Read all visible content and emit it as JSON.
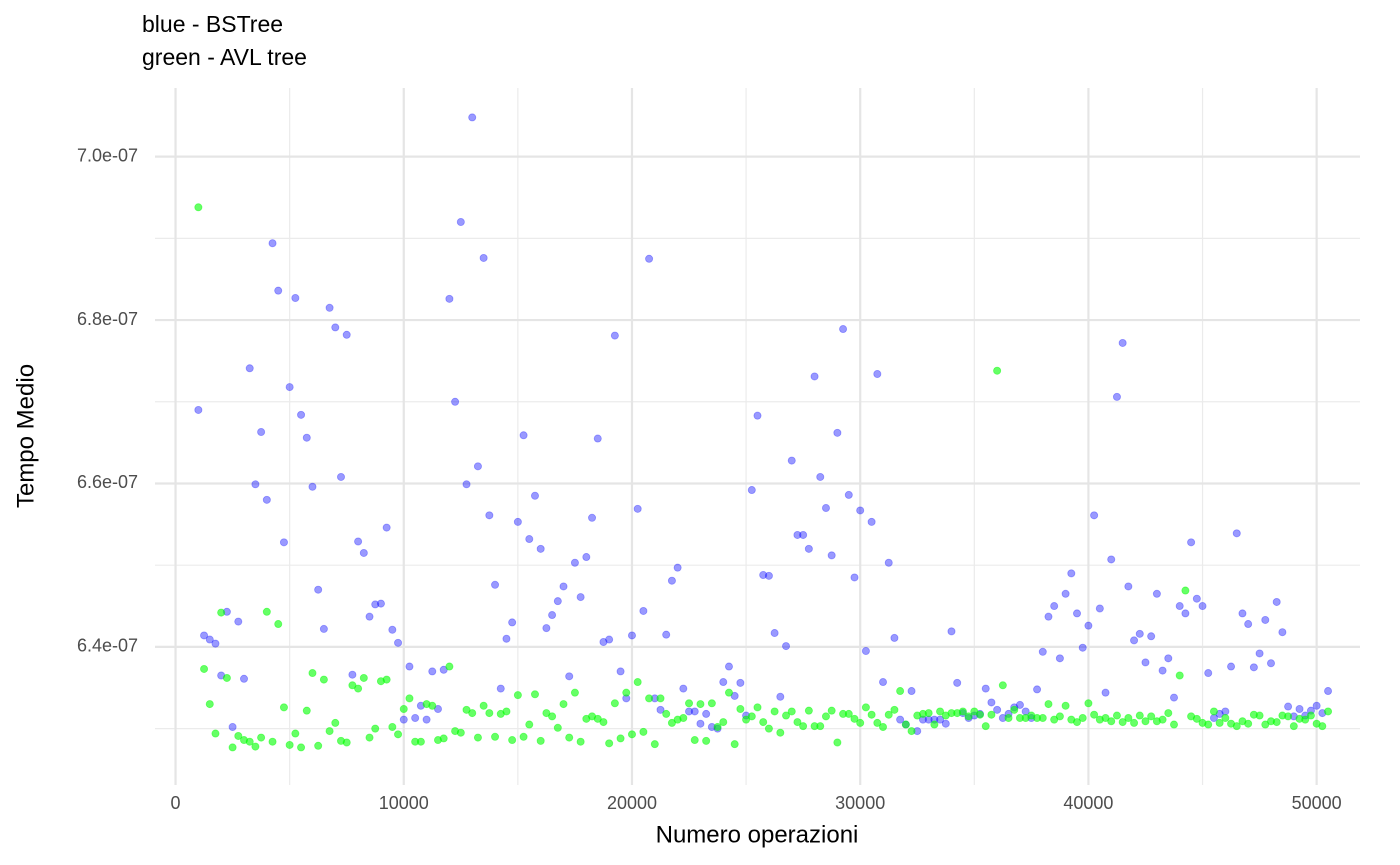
{
  "chart_data": {
    "type": "scatter",
    "title": "blue - BSTree",
    "subtitle": "green - AVL tree",
    "x_label": "Numero operazioni",
    "y_label": "Tempo Medio",
    "xlim": [
      -900,
      51900
    ],
    "ylim": [
      6.231e-07,
      7.084e-07
    ],
    "xticks": [
      0,
      10000,
      20000,
      30000,
      40000,
      50000
    ],
    "x_minor_ticks": [
      5000,
      15000,
      25000,
      35000,
      45000
    ],
    "yticks": [
      {
        "value": 6.4e-07,
        "label": "6.4e-07"
      },
      {
        "value": 6.6e-07,
        "label": "6.6e-07"
      },
      {
        "value": 6.8e-07,
        "label": "6.8e-07"
      },
      {
        "value": 7e-07,
        "label": "7.0e-07"
      }
    ],
    "y_minor_ticks": [
      6.3e-07,
      6.5e-07,
      6.7e-07,
      6.9e-07
    ],
    "grid": true,
    "x": [
      1000,
      1250,
      1500,
      1750,
      2000,
      2250,
      2500,
      2750,
      3000,
      3250,
      3500,
      3750,
      4000,
      4250,
      4500,
      4750,
      5000,
      5250,
      5500,
      5750,
      6000,
      6250,
      6500,
      6750,
      7000,
      7250,
      7500,
      7750,
      8000,
      8250,
      8500,
      8750,
      9000,
      9250,
      9500,
      9750,
      10000,
      10250,
      10500,
      10750,
      11000,
      11250,
      11500,
      11750,
      12000,
      12250,
      12500,
      12750,
      13000,
      13250,
      13500,
      13750,
      14000,
      14250,
      14500,
      14750,
      15000,
      15250,
      15500,
      15750,
      16000,
      16250,
      16500,
      16750,
      17000,
      17250,
      17500,
      17750,
      18000,
      18250,
      18500,
      18750,
      19000,
      19250,
      19500,
      19750,
      20000,
      20250,
      20500,
      20750,
      21000,
      21250,
      21500,
      21750,
      22000,
      22250,
      22500,
      22750,
      23000,
      23250,
      23500,
      23750,
      24000,
      24250,
      24500,
      24750,
      25000,
      25250,
      25500,
      25750,
      26000,
      26250,
      26500,
      26750,
      27000,
      27250,
      27500,
      27750,
      28000,
      28250,
      28500,
      28750,
      29000,
      29250,
      29500,
      29750,
      30000,
      30250,
      30500,
      30750,
      31000,
      31250,
      31500,
      31750,
      32000,
      32250,
      32500,
      32750,
      33000,
      33250,
      33500,
      33750,
      34000,
      34250,
      34500,
      34750,
      35000,
      35250,
      35500,
      35750,
      36000,
      36250,
      36500,
      36750,
      37000,
      37250,
      37500,
      37750,
      38000,
      38250,
      38500,
      38750,
      39000,
      39250,
      39500,
      39750,
      40000,
      40250,
      40500,
      40750,
      41000,
      41250,
      41500,
      41750,
      42000,
      42250,
      42500,
      42750,
      43000,
      43250,
      43500,
      43750,
      44000,
      44250,
      44500,
      44750,
      45000,
      45250,
      45500,
      45750,
      46000,
      46250,
      46500,
      46750,
      47000,
      47250,
      47500,
      47750,
      48000,
      48250,
      48500,
      48750,
      49000,
      49250,
      49500,
      49750,
      50000,
      50250,
      50500
    ],
    "series": [
      {
        "color": "#0000ff",
        "opacity": 0.4,
        "values": [
          6.69e-07,
          6.414e-07,
          6.409e-07,
          6.404e-07,
          6.365e-07,
          6.443e-07,
          6.302e-07,
          6.431e-07,
          6.361e-07,
          6.741e-07,
          6.599e-07,
          6.663e-07,
          6.58e-07,
          6.894e-07,
          6.836e-07,
          6.528e-07,
          6.718e-07,
          6.827e-07,
          6.684e-07,
          6.656e-07,
          6.596e-07,
          6.47e-07,
          6.422e-07,
          6.815e-07,
          6.791e-07,
          6.608e-07,
          6.782e-07,
          6.366e-07,
          6.529e-07,
          6.515e-07,
          6.437e-07,
          6.452e-07,
          6.453e-07,
          6.546e-07,
          6.421e-07,
          6.405e-07,
          6.311e-07,
          6.376e-07,
          6.313e-07,
          6.328e-07,
          6.311e-07,
          6.37e-07,
          6.324e-07,
          6.372e-07,
          6.826e-07,
          6.7e-07,
          6.92e-07,
          6.599e-07,
          7.048e-07,
          6.621e-07,
          6.876e-07,
          6.561e-07,
          6.476e-07,
          6.349e-07,
          6.41e-07,
          6.43e-07,
          6.553e-07,
          6.659e-07,
          6.532e-07,
          6.585e-07,
          6.52e-07,
          6.423e-07,
          6.439e-07,
          6.456e-07,
          6.474e-07,
          6.364e-07,
          6.503e-07,
          6.461e-07,
          6.51e-07,
          6.558e-07,
          6.655e-07,
          6.406e-07,
          6.409e-07,
          6.781e-07,
          6.37e-07,
          6.337e-07,
          6.414e-07,
          6.569e-07,
          6.444e-07,
          6.875e-07,
          6.337e-07,
          6.323e-07,
          6.415e-07,
          6.481e-07,
          6.497e-07,
          6.349e-07,
          6.321e-07,
          6.321e-07,
          6.306e-07,
          6.318e-07,
          6.302e-07,
          6.3e-07,
          6.357e-07,
          6.376e-07,
          6.34e-07,
          6.356e-07,
          6.316e-07,
          6.592e-07,
          6.683e-07,
          6.488e-07,
          6.487e-07,
          6.417e-07,
          6.339e-07,
          6.401e-07,
          6.628e-07,
          6.537e-07,
          6.537e-07,
          6.52e-07,
          6.731e-07,
          6.608e-07,
          6.57e-07,
          6.512e-07,
          6.662e-07,
          6.789e-07,
          6.586e-07,
          6.485e-07,
          6.567e-07,
          6.395e-07,
          6.553e-07,
          6.734e-07,
          6.357e-07,
          6.503e-07,
          6.411e-07,
          6.311e-07,
          6.305e-07,
          6.346e-07,
          6.297e-07,
          6.311e-07,
          6.311e-07,
          6.311e-07,
          6.311e-07,
          6.306e-07,
          6.419e-07,
          6.356e-07,
          6.319e-07,
          6.313e-07,
          6.316e-07,
          6.318e-07,
          6.349e-07,
          6.332e-07,
          6.323e-07,
          6.313e-07,
          6.318e-07,
          6.326e-07,
          6.329e-07,
          6.321e-07,
          6.313e-07,
          6.348e-07,
          6.394e-07,
          6.437e-07,
          6.45e-07,
          6.386e-07,
          6.465e-07,
          6.49e-07,
          6.441e-07,
          6.399e-07,
          6.426e-07,
          6.561e-07,
          6.447e-07,
          6.344e-07,
          6.507e-07,
          6.706e-07,
          6.772e-07,
          6.474e-07,
          6.408e-07,
          6.416e-07,
          6.381e-07,
          6.413e-07,
          6.465e-07,
          6.371e-07,
          6.386e-07,
          6.338e-07,
          6.45e-07,
          6.441e-07,
          6.528e-07,
          6.459e-07,
          6.45e-07,
          6.368e-07,
          6.313e-07,
          6.318e-07,
          6.321e-07,
          6.376e-07,
          6.539e-07,
          6.441e-07,
          6.428e-07,
          6.375e-07,
          6.392e-07,
          6.433e-07,
          6.38e-07,
          6.455e-07,
          6.418e-07,
          6.327e-07,
          6.315e-07,
          6.324e-07,
          6.316e-07,
          6.322e-07,
          6.328e-07,
          6.319e-07,
          6.346e-07
        ]
      },
      {
        "color": "#00ff00",
        "opacity": 0.6,
        "values": [
          6.938e-07,
          6.373e-07,
          6.33e-07,
          6.294e-07,
          6.442e-07,
          6.362e-07,
          6.277e-07,
          6.291e-07,
          6.286e-07,
          6.284e-07,
          6.278e-07,
          6.289e-07,
          6.443e-07,
          6.284e-07,
          6.428e-07,
          6.326e-07,
          6.28e-07,
          6.294e-07,
          6.277e-07,
          6.322e-07,
          6.368e-07,
          6.279e-07,
          6.36e-07,
          6.297e-07,
          6.307e-07,
          6.285e-07,
          6.283e-07,
          6.353e-07,
          6.349e-07,
          6.362e-07,
          6.289e-07,
          6.3e-07,
          6.358e-07,
          6.36e-07,
          6.302e-07,
          6.293e-07,
          6.324e-07,
          6.337e-07,
          6.284e-07,
          6.284e-07,
          6.33e-07,
          6.328e-07,
          6.286e-07,
          6.288e-07,
          6.376e-07,
          6.297e-07,
          6.295e-07,
          6.323e-07,
          6.319e-07,
          6.289e-07,
          6.328e-07,
          6.319e-07,
          6.29e-07,
          6.318e-07,
          6.321e-07,
          6.286e-07,
          6.341e-07,
          6.29e-07,
          6.305e-07,
          6.342e-07,
          6.285e-07,
          6.319e-07,
          6.315e-07,
          6.301e-07,
          6.33e-07,
          6.289e-07,
          6.344e-07,
          6.284e-07,
          6.312e-07,
          6.315e-07,
          6.312e-07,
          6.308e-07,
          6.282e-07,
          6.331e-07,
          6.288e-07,
          6.344e-07,
          6.293e-07,
          6.357e-07,
          6.296e-07,
          6.337e-07,
          6.281e-07,
          6.337e-07,
          6.318e-07,
          6.307e-07,
          6.311e-07,
          6.313e-07,
          6.331e-07,
          6.286e-07,
          6.33e-07,
          6.285e-07,
          6.331e-07,
          6.302e-07,
          6.308e-07,
          6.344e-07,
          6.281e-07,
          6.324e-07,
          6.311e-07,
          6.315e-07,
          6.326e-07,
          6.308e-07,
          6.3e-07,
          6.321e-07,
          6.295e-07,
          6.316e-07,
          6.321e-07,
          6.308e-07,
          6.303e-07,
          6.322e-07,
          6.303e-07,
          6.303e-07,
          6.315e-07,
          6.322e-07,
          6.283e-07,
          6.318e-07,
          6.318e-07,
          6.312e-07,
          6.307e-07,
          6.326e-07,
          6.317e-07,
          6.307e-07,
          6.302e-07,
          6.317e-07,
          6.323e-07,
          6.346e-07,
          6.305e-07,
          6.297e-07,
          6.316e-07,
          6.318e-07,
          6.319e-07,
          6.305e-07,
          6.321e-07,
          6.316e-07,
          6.319e-07,
          6.319e-07,
          6.321e-07,
          6.315e-07,
          6.321e-07,
          6.317e-07,
          6.303e-07,
          6.317e-07,
          6.738e-07,
          6.353e-07,
          6.313e-07,
          6.323e-07,
          6.313e-07,
          6.313e-07,
          6.316e-07,
          6.313e-07,
          6.313e-07,
          6.33e-07,
          6.311e-07,
          6.315e-07,
          6.328e-07,
          6.311e-07,
          6.308e-07,
          6.313e-07,
          6.331e-07,
          6.317e-07,
          6.311e-07,
          6.313e-07,
          6.309e-07,
          6.316e-07,
          6.308e-07,
          6.313e-07,
          6.307e-07,
          6.316e-07,
          6.309e-07,
          6.315e-07,
          6.309e-07,
          6.311e-07,
          6.319e-07,
          6.305e-07,
          6.365e-07,
          6.469e-07,
          6.315e-07,
          6.312e-07,
          6.307e-07,
          6.305e-07,
          6.321e-07,
          6.307e-07,
          6.313e-07,
          6.306e-07,
          6.303e-07,
          6.309e-07,
          6.306e-07,
          6.317e-07,
          6.316e-07,
          6.305e-07,
          6.309e-07,
          6.308e-07,
          6.316e-07,
          6.315e-07,
          6.303e-07,
          6.312e-07,
          6.311e-07,
          6.316e-07,
          6.306e-07,
          6.303e-07,
          6.321e-07
        ]
      }
    ]
  }
}
